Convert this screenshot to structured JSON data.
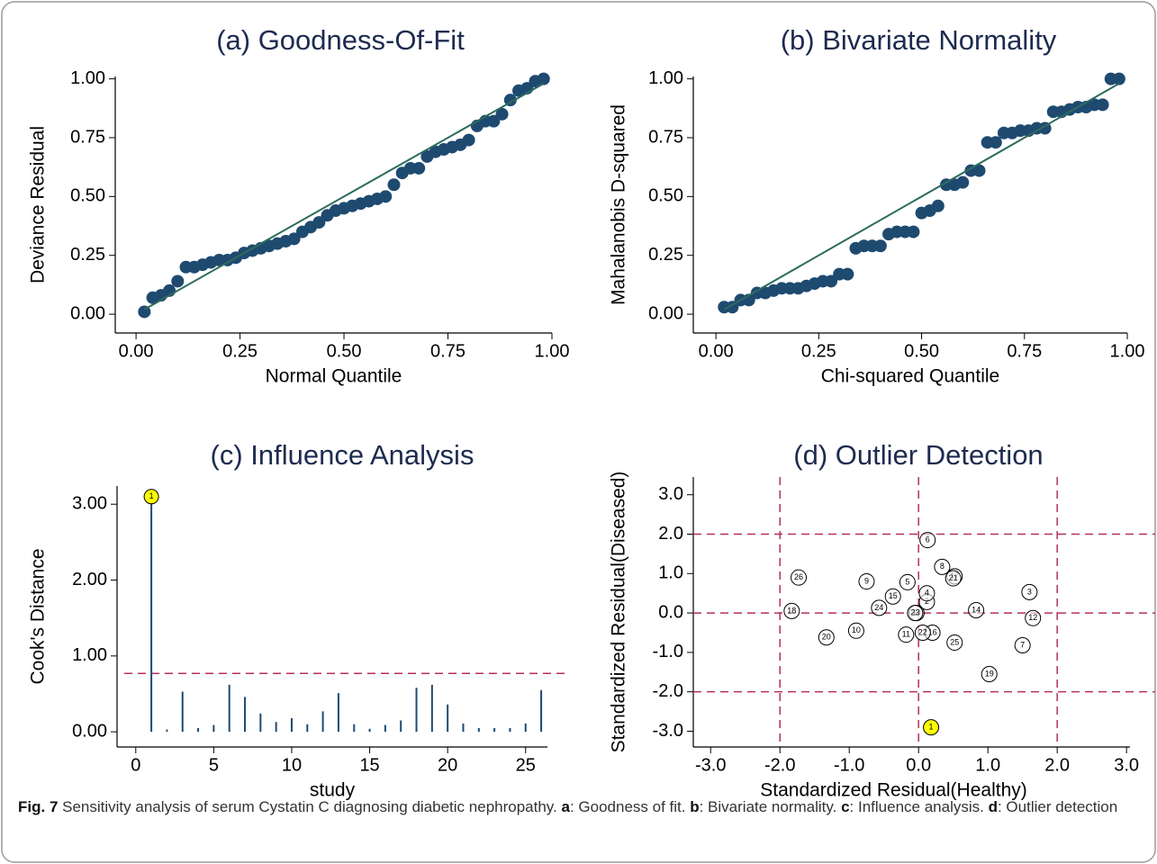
{
  "chart_data": [
    {
      "type": "scatter",
      "title": "(a) Goodness-Of-Fit",
      "xlabel": "Normal Quantile",
      "ylabel": "Deviance Residual",
      "xlim": [
        -0.05,
        1.0
      ],
      "ylim": [
        -0.08,
        1.01
      ],
      "xticks": [
        {
          "value": 0,
          "label": "0.00"
        },
        {
          "value": 0.25,
          "label": "0.25"
        },
        {
          "value": 0.5,
          "label": "0.50"
        },
        {
          "value": 0.75,
          "label": "0.75"
        },
        {
          "value": 1,
          "label": "1.00"
        }
      ],
      "yticks": [
        {
          "value": 0,
          "label": "0.00"
        },
        {
          "value": 0.25,
          "label": "0.25"
        },
        {
          "value": 0.5,
          "label": "0.50"
        },
        {
          "value": 0.75,
          "label": "0.75"
        },
        {
          "value": 1,
          "label": "1.00"
        }
      ],
      "series": [
        {
          "kind": "points",
          "color": "#1f4a70",
          "x": [
            0.02,
            0.04,
            0.06,
            0.08,
            0.1,
            0.12,
            0.14,
            0.16,
            0.18,
            0.2,
            0.22,
            0.24,
            0.26,
            0.28,
            0.3,
            0.32,
            0.34,
            0.36,
            0.38,
            0.4,
            0.42,
            0.44,
            0.46,
            0.48,
            0.5,
            0.52,
            0.54,
            0.56,
            0.58,
            0.6,
            0.62,
            0.64,
            0.66,
            0.68,
            0.7,
            0.72,
            0.74,
            0.76,
            0.78,
            0.8,
            0.82,
            0.84,
            0.86,
            0.88,
            0.9,
            0.92,
            0.94,
            0.96,
            0.98
          ],
          "values": [
            0.01,
            0.07,
            0.08,
            0.1,
            0.14,
            0.2,
            0.2,
            0.21,
            0.22,
            0.23,
            0.23,
            0.24,
            0.26,
            0.27,
            0.28,
            0.29,
            0.3,
            0.31,
            0.32,
            0.35,
            0.37,
            0.39,
            0.42,
            0.44,
            0.45,
            0.46,
            0.47,
            0.48,
            0.49,
            0.5,
            0.55,
            0.6,
            0.62,
            0.62,
            0.67,
            0.69,
            0.7,
            0.71,
            0.72,
            0.74,
            0.8,
            0.82,
            0.82,
            0.85,
            0.91,
            0.95,
            0.96,
            0.99,
            1.0
          ]
        },
        {
          "kind": "line",
          "color": "#2e6b5e",
          "x": [
            0.02,
            0.98
          ],
          "values": [
            0.02,
            0.98
          ]
        }
      ]
    },
    {
      "type": "scatter",
      "title": "(b) Bivariate Normality",
      "xlabel": "Chi-squared Quantile",
      "ylabel": "Mahalanobis D-squared",
      "xlim": [
        -0.055,
        1.0
      ],
      "ylim": [
        -0.08,
        1.01
      ],
      "xticks": [
        {
          "value": 0,
          "label": "0.00"
        },
        {
          "value": 0.25,
          "label": "0.25"
        },
        {
          "value": 0.5,
          "label": "0.50"
        },
        {
          "value": 0.75,
          "label": "0.75"
        },
        {
          "value": 1,
          "label": "1.00"
        }
      ],
      "yticks": [
        {
          "value": 0,
          "label": "0.00"
        },
        {
          "value": 0.25,
          "label": "0.25"
        },
        {
          "value": 0.5,
          "label": "0.50"
        },
        {
          "value": 0.75,
          "label": "0.75"
        },
        {
          "value": 1,
          "label": "1.00"
        }
      ],
      "series": [
        {
          "kind": "points",
          "color": "#1f4a70",
          "x": [
            0.02,
            0.04,
            0.06,
            0.08,
            0.1,
            0.12,
            0.14,
            0.16,
            0.18,
            0.2,
            0.22,
            0.24,
            0.26,
            0.28,
            0.3,
            0.32,
            0.34,
            0.36,
            0.38,
            0.4,
            0.42,
            0.44,
            0.46,
            0.48,
            0.5,
            0.52,
            0.54,
            0.56,
            0.58,
            0.6,
            0.62,
            0.64,
            0.66,
            0.68,
            0.7,
            0.72,
            0.74,
            0.76,
            0.78,
            0.8,
            0.82,
            0.84,
            0.86,
            0.88,
            0.9,
            0.92,
            0.94,
            0.96,
            0.98
          ],
          "values": [
            0.03,
            0.03,
            0.06,
            0.06,
            0.09,
            0.09,
            0.1,
            0.11,
            0.11,
            0.11,
            0.12,
            0.13,
            0.14,
            0.14,
            0.17,
            0.17,
            0.28,
            0.29,
            0.29,
            0.29,
            0.34,
            0.35,
            0.35,
            0.35,
            0.43,
            0.44,
            0.46,
            0.55,
            0.55,
            0.56,
            0.61,
            0.61,
            0.73,
            0.73,
            0.77,
            0.77,
            0.78,
            0.78,
            0.79,
            0.79,
            0.86,
            0.86,
            0.87,
            0.88,
            0.88,
            0.89,
            0.89,
            1.0,
            1.0
          ]
        },
        {
          "kind": "line",
          "color": "#2e6b5e",
          "x": [
            0.02,
            0.98
          ],
          "values": [
            0.02,
            0.98
          ]
        }
      ]
    },
    {
      "type": "stem",
      "title": "(c) Influence Analysis",
      "xlabel": "study",
      "ylabel": "Cook's Distance",
      "xlim": [
        -1.2,
        26.4
      ],
      "ylim": [
        -0.2,
        3.24
      ],
      "xticks": [
        0,
        5,
        10,
        15,
        20,
        25
      ],
      "yticks": [
        {
          "value": 0,
          "label": "0.00"
        },
        {
          "value": 1,
          "label": "1.00"
        },
        {
          "value": 2,
          "label": "2.00"
        },
        {
          "value": 3,
          "label": "3.00"
        }
      ],
      "color": "#1f4a70",
      "x": [
        1,
        2,
        3,
        4,
        5,
        6,
        7,
        8,
        9,
        10,
        11,
        12,
        13,
        14,
        15,
        16,
        17,
        18,
        19,
        20,
        21,
        22,
        23,
        24,
        25,
        26
      ],
      "values": [
        3.1,
        0.03,
        0.53,
        0.05,
        0.09,
        0.62,
        0.46,
        0.24,
        0.13,
        0.18,
        0.1,
        0.27,
        0.51,
        0.1,
        0.04,
        0.09,
        0.15,
        0.58,
        0.62,
        0.36,
        0.11,
        0.05,
        0.05,
        0.05,
        0.11,
        0.55
      ],
      "threshold": 0.77,
      "threshold_color": "#b5305a",
      "highlight": {
        "index": 0,
        "label": "1",
        "color": "#ffff00"
      }
    },
    {
      "type": "labeled-scatter",
      "title": "(d) Outlier Detection",
      "xlabel": "Standardized Residual(Healthy)",
      "ylabel": "Standardized Residual(Diseased)",
      "xlim": [
        -3.25,
        3.05
      ],
      "ylim": [
        -3.4,
        3.45
      ],
      "xticks": [
        {
          "value": -3,
          "label": "-3.0"
        },
        {
          "value": -2,
          "label": "-2.0"
        },
        {
          "value": -1,
          "label": "-1.0"
        },
        {
          "value": 0,
          "label": "0.0"
        },
        {
          "value": 1,
          "label": "1.0"
        },
        {
          "value": 2,
          "label": "2.0"
        },
        {
          "value": 3,
          "label": "3.0"
        }
      ],
      "yticks": [
        {
          "value": -3,
          "label": "-3.0"
        },
        {
          "value": -2,
          "label": "-2.0"
        },
        {
          "value": -1,
          "label": "-1.0"
        },
        {
          "value": 0,
          "label": "0.0"
        },
        {
          "value": 1,
          "label": "1.0"
        },
        {
          "value": 2,
          "label": "2.0"
        },
        {
          "value": 3,
          "label": "3.0"
        }
      ],
      "vlines": [
        -2,
        0,
        2
      ],
      "hlines": [
        -2,
        0,
        2
      ],
      "line_color": "#b5305a",
      "labels": [
        "1",
        "2",
        "3",
        "4",
        "5",
        "6",
        "7",
        "8",
        "9",
        "10",
        "11",
        "12",
        "13",
        "14",
        "15",
        "16",
        "17",
        "18",
        "19",
        "20",
        "21",
        "22",
        "23",
        "24",
        "25",
        "26"
      ],
      "x": [
        0.18,
        0.12,
        1.6,
        0.12,
        -0.16,
        0.13,
        1.5,
        0.34,
        -0.75,
        -0.9,
        -0.18,
        1.65,
        -0.03,
        0.83,
        -0.37,
        0.2,
        0.52,
        -1.83,
        1.02,
        -1.33,
        0.5,
        0.06,
        -0.05,
        -0.57,
        0.52,
        -1.73
      ],
      "values": [
        -2.9,
        0.28,
        0.53,
        0.5,
        0.78,
        1.85,
        -0.82,
        1.17,
        0.8,
        -0.45,
        -0.55,
        -0.13,
        0.0,
        0.07,
        0.42,
        -0.5,
        0.93,
        0.05,
        -1.55,
        -0.62,
        0.88,
        -0.5,
        0.0,
        0.13,
        -0.75,
        0.9
      ],
      "highlight": {
        "index": 0,
        "color": "#ffff00"
      }
    }
  ],
  "caption": [
    "Fig. 7",
    " Sensitivity analysis of serum Cystatin C diagnosing diabetic nephropathy. ",
    "a",
    ": Goodness of fit. ",
    "b",
    ": Bivariate normality. ",
    "c",
    ": Influence analysis. ",
    "d",
    ": Outlier detection"
  ]
}
